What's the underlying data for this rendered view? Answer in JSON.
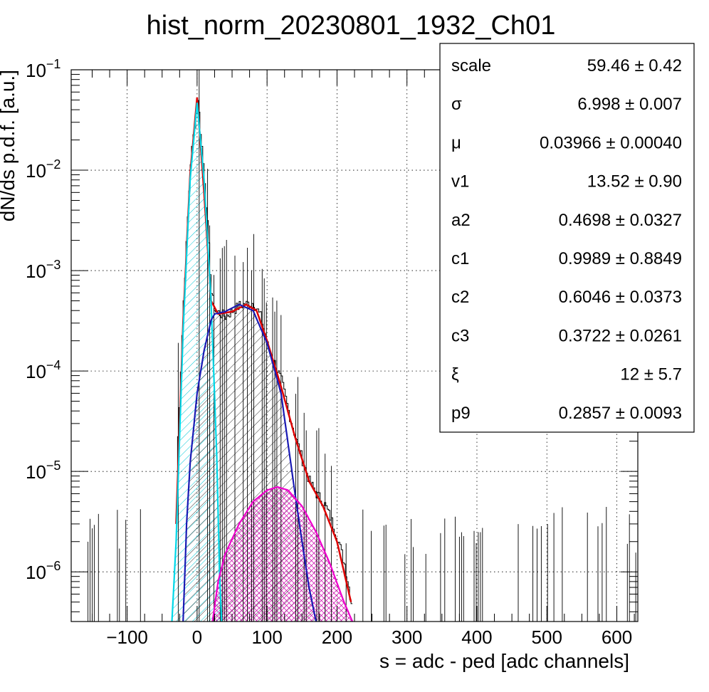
{
  "chart_data": {
    "type": "histogram",
    "title": "hist_norm_20230801_1932_Ch01",
    "xlabel": "s = adc - ped [adc channels]",
    "ylabel": "dN/ds p.d.f. [a.u.]",
    "xlim": [
      -180,
      630
    ],
    "ylim": [
      3.2e-07,
      0.1
    ],
    "yscale": "log",
    "grid": true,
    "x_ticks": [
      -100,
      0,
      100,
      200,
      300,
      400,
      500,
      600
    ],
    "x_tick_labels": [
      "−100",
      "0",
      "100",
      "200",
      "300",
      "400",
      "500",
      "600"
    ],
    "y_ticks": [
      1e-06,
      1e-05,
      0.0001,
      0.001,
      0.01,
      0.1
    ],
    "y_tick_labels": [
      {
        "base": "10",
        "exp": "−6"
      },
      {
        "base": "10",
        "exp": "−5"
      },
      {
        "base": "10",
        "exp": "−4"
      },
      {
        "base": "10",
        "exp": "−3"
      },
      {
        "base": "10",
        "exp": "−2"
      },
      {
        "base": "10",
        "exp": "−1"
      }
    ],
    "series": [
      {
        "role": "histogram",
        "color": "#000000",
        "x": [
          -30,
          -20,
          -10,
          0,
          10,
          20,
          25,
          40,
          60,
          80,
          90,
          100,
          110,
          120,
          130,
          140,
          150,
          160,
          170,
          180,
          190,
          200,
          210,
          220
        ],
        "y": [
          1e-05,
          0.0005,
          0.012,
          0.053,
          0.008,
          0.0006,
          0.0004,
          0.00035,
          0.00045,
          0.00048,
          0.00035,
          0.00018,
          0.00012,
          8e-05,
          4e-05,
          2.2e-05,
          1.3e-05,
          8e-06,
          6e-06,
          5e-06,
          3.5e-06,
          2.2e-06,
          1.2e-06,
          5e-07
        ]
      },
      {
        "role": "total fit",
        "color": "#dd0000",
        "x": [
          -30,
          -20,
          -10,
          0,
          10,
          20,
          30,
          50,
          70,
          85,
          100,
          120,
          140,
          160,
          180,
          200,
          220
        ],
        "y": [
          3e-06,
          0.0003,
          0.009,
          0.053,
          0.006,
          0.0005,
          0.00037,
          0.00039,
          0.00046,
          0.0004,
          0.0002,
          7e-05,
          2.2e-05,
          8e-06,
          4.5e-06,
          2e-06,
          5e-07
        ]
      },
      {
        "role": "pedestal component",
        "color": "#00d8e8",
        "fill": "hatched",
        "x": [
          -36,
          -30,
          -20,
          -10,
          0,
          10,
          20,
          28,
          32,
          35
        ],
        "y": [
          3.2e-07,
          2e-06,
          0.00025,
          0.008,
          0.047,
          0.008,
          0.0005,
          1.5e-05,
          1e-06,
          3.2e-07
        ]
      },
      {
        "role": "single-signal component",
        "color": "#1a1ab4",
        "fill": "hatched",
        "x": [
          -20,
          -15,
          -10,
          0,
          10,
          20,
          25,
          40,
          60,
          80,
          100,
          120,
          140,
          150,
          160,
          170
        ],
        "y": [
          3.2e-07,
          3e-06,
          1.2e-05,
          6e-05,
          0.00016,
          0.00032,
          0.00037,
          0.00039,
          0.00046,
          0.0004,
          0.00019,
          6e-05,
          6e-06,
          2e-06,
          7e-07,
          3.2e-07
        ]
      },
      {
        "role": "double-signal component",
        "color": "#ee00cc",
        "fill": "hatched",
        "x": [
          22,
          30,
          40,
          60,
          80,
          100,
          115,
          130,
          150,
          170,
          190,
          210,
          222
        ],
        "y": [
          3.2e-07,
          8e-07,
          1.5e-06,
          3e-06,
          5e-06,
          6.5e-06,
          7e-06,
          6.5e-06,
          4.5e-06,
          2.5e-06,
          1.2e-06,
          5e-07,
          3.2e-07
        ]
      }
    ],
    "stats_box": {
      "position": "top-right",
      "rows": [
        {
          "label": "scale",
          "value": "59.46 ± 0.42"
        },
        {
          "label": "σ",
          "value": "6.998 ± 0.007"
        },
        {
          "label": "μ",
          "value": "0.03966 ± 0.00040"
        },
        {
          "label": "v1",
          "value": "13.52 ± 0.90"
        },
        {
          "label": "a2",
          "value": "0.4698 ± 0.0327"
        },
        {
          "label": "c1",
          "value": "0.9989 ± 0.8849"
        },
        {
          "label": "c2",
          "value": "0.6046 ± 0.0373"
        },
        {
          "label": "c3",
          "value": "0.3722 ± 0.0261"
        },
        {
          "label": "ξ",
          "value": "12 ± 5.7"
        },
        {
          "label": "p9",
          "value": "0.2857 ± 0.0093"
        }
      ]
    }
  }
}
